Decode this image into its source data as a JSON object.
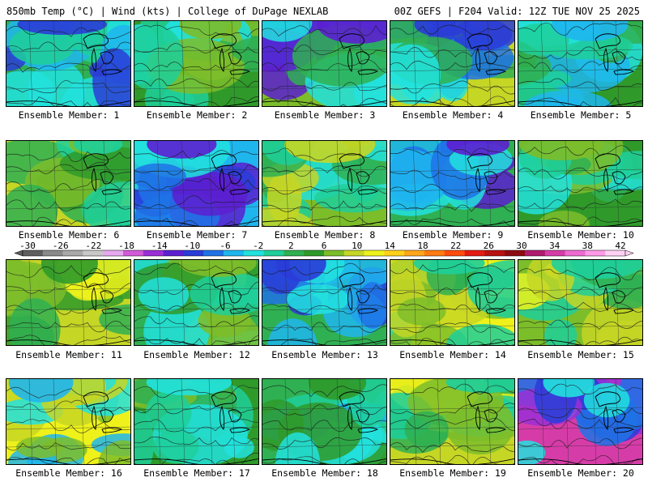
{
  "header": {
    "left": "850mb Temp (°C) | Wind (kts) | College of DuPage NEXLAB",
    "right": "00Z GEFS | F204 Valid: 12Z TUE NOV 25 2025"
  },
  "colorbar": {
    "labels": [
      "-30",
      "-26",
      "-22",
      "-18",
      "-14",
      "-10",
      "-6",
      "-2",
      "2",
      "6",
      "10",
      "14",
      "18",
      "22",
      "26",
      "30",
      "34",
      "38",
      "42"
    ],
    "colors": [
      "#5e5e5e",
      "#8a8a8a",
      "#a9a9a9",
      "#c8c8c8",
      "#e6a8ee",
      "#d25ad8",
      "#9b2fd6",
      "#5c1fd0",
      "#2a3cd8",
      "#1f73e6",
      "#1fb6ee",
      "#22e2de",
      "#1fcf9a",
      "#2fb052",
      "#2f9a2a",
      "#7cbd2a",
      "#c5d625",
      "#eef21a",
      "#ffd11a",
      "#ffa51a",
      "#ff7a12",
      "#ff4a0e",
      "#e51a12",
      "#b8120e",
      "#8c0a10",
      "#b01a6e",
      "#d63ca8",
      "#ee6ad0",
      "#ff9ae8",
      "#ffd2f4"
    ]
  },
  "members": [
    {
      "label": "Ensemble Member: 1",
      "palette": [
        "#2fb052",
        "#1fcf9a",
        "#22e2de",
        "#1fb6ee",
        "#2a3cd8"
      ]
    },
    {
      "label": "Ensemble Member: 2",
      "palette": [
        "#2f9a2a",
        "#2fb052",
        "#1fcf9a",
        "#22e2de",
        "#7cbd2a"
      ]
    },
    {
      "label": "Ensemble Member: 3",
      "palette": [
        "#7cbd2a",
        "#2fb052",
        "#22e2de",
        "#1f73e6",
        "#5c1fd0"
      ]
    },
    {
      "label": "Ensemble Member: 4",
      "palette": [
        "#c5d625",
        "#2fb052",
        "#22e2de",
        "#1f73e6",
        "#2a3cd8"
      ]
    },
    {
      "label": "Ensemble Member: 5",
      "palette": [
        "#2f9a2a",
        "#2fb052",
        "#1fcf9a",
        "#22e2de",
        "#1fb6ee"
      ]
    },
    {
      "label": "Ensemble Member: 6",
      "palette": [
        "#c5d625",
        "#7cbd2a",
        "#2fb052",
        "#2f9a2a",
        "#1fcf9a"
      ]
    },
    {
      "label": "Ensemble Member: 7",
      "palette": [
        "#1fb6ee",
        "#22e2de",
        "#1f73e6",
        "#2a3cd8",
        "#5c1fd0"
      ]
    },
    {
      "label": "Ensemble Member: 8",
      "palette": [
        "#7cbd2a",
        "#2fb052",
        "#1fcf9a",
        "#22e2de",
        "#c5d625"
      ]
    },
    {
      "label": "Ensemble Member: 9",
      "palette": [
        "#2fb052",
        "#22e2de",
        "#1fb6ee",
        "#1f73e6",
        "#5c1fd0"
      ]
    },
    {
      "label": "Ensemble Member: 10",
      "palette": [
        "#2f9a2a",
        "#2fb052",
        "#1fcf9a",
        "#22e2de",
        "#7cbd2a"
      ]
    },
    {
      "label": "Ensemble Member: 11",
      "palette": [
        "#c5d625",
        "#7cbd2a",
        "#2fb052",
        "#eef21a",
        "#2f9a2a"
      ]
    },
    {
      "label": "Ensemble Member: 12",
      "palette": [
        "#2fb052",
        "#1fcf9a",
        "#22e2de",
        "#2f9a2a",
        "#7cbd2a"
      ]
    },
    {
      "label": "Ensemble Member: 13",
      "palette": [
        "#2fb052",
        "#22e2de",
        "#1fb6ee",
        "#1f73e6",
        "#2a3cd8"
      ]
    },
    {
      "label": "Ensemble Member: 14",
      "palette": [
        "#eef21a",
        "#c5d625",
        "#7cbd2a",
        "#2fb052",
        "#1fcf9a"
      ]
    },
    {
      "label": "Ensemble Member: 15",
      "palette": [
        "#7cbd2a",
        "#2fb052",
        "#c5d625",
        "#eef21a",
        "#1fcf9a"
      ]
    },
    {
      "label": "Ensemble Member: 16",
      "palette": [
        "#eef21a",
        "#c5d625",
        "#7cbd2a",
        "#22e2de",
        "#1fb6ee"
      ]
    },
    {
      "label": "Ensemble Member: 17",
      "palette": [
        "#2f9a2a",
        "#2fb052",
        "#1fcf9a",
        "#7cbd2a",
        "#22e2de"
      ]
    },
    {
      "label": "Ensemble Member: 18",
      "palette": [
        "#2fb052",
        "#1fcf9a",
        "#22e2de",
        "#1fb6ee",
        "#2f9a2a"
      ]
    },
    {
      "label": "Ensemble Member: 19",
      "palette": [
        "#c5d625",
        "#7cbd2a",
        "#2fb052",
        "#eef21a",
        "#1fcf9a"
      ]
    },
    {
      "label": "Ensemble Member: 20",
      "palette": [
        "#d63ca8",
        "#9b2fd6",
        "#2a3cd8",
        "#1f73e6",
        "#22e2de"
      ]
    }
  ]
}
